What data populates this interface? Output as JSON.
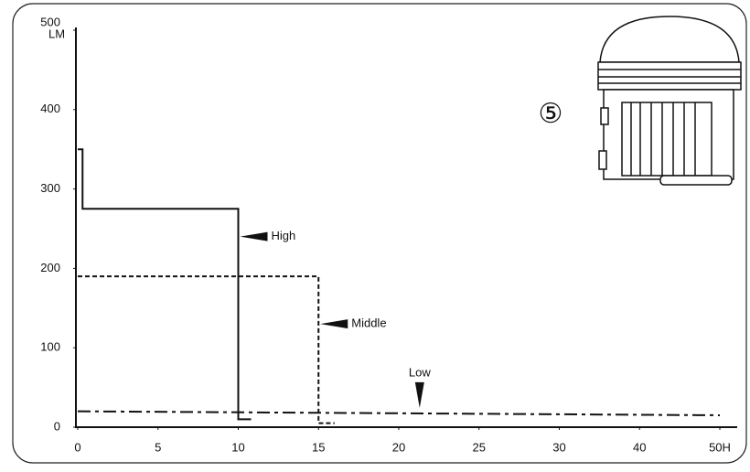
{
  "chart_data": {
    "type": "line",
    "x_label_unit": "LM",
    "badge": "⑤",
    "xlim": [
      0,
      50
    ],
    "xticks": [
      0,
      5,
      10,
      15,
      20,
      25,
      30,
      40,
      {
        "value": 50,
        "label": "50H"
      }
    ],
    "ylim": [
      0,
      500
    ],
    "yticks": [
      0,
      100,
      200,
      300,
      400,
      500
    ],
    "series": [
      {
        "name": "High",
        "color": "#111111",
        "style": "solid",
        "x": [
          0,
          0.3,
          0.3,
          10,
          10,
          10.8
        ],
        "values": [
          350,
          350,
          275,
          275,
          10,
          10
        ]
      },
      {
        "name": "Middle",
        "color": "#111111",
        "style": "dashed",
        "x": [
          0,
          15,
          15,
          16
        ],
        "values": [
          190,
          190,
          5,
          5
        ]
      },
      {
        "name": "Low",
        "color": "#111111",
        "style": "dashdot",
        "x": [
          0,
          50
        ],
        "values": [
          20,
          15
        ]
      }
    ],
    "annotations": [
      {
        "text": "High",
        "x": 10,
        "y": 240,
        "arrow": "left"
      },
      {
        "text": "Middle",
        "x": 15,
        "y": 130,
        "arrow": "left"
      },
      {
        "text": "Low",
        "x": 21.3,
        "y": 22,
        "arrow": "down"
      }
    ]
  }
}
